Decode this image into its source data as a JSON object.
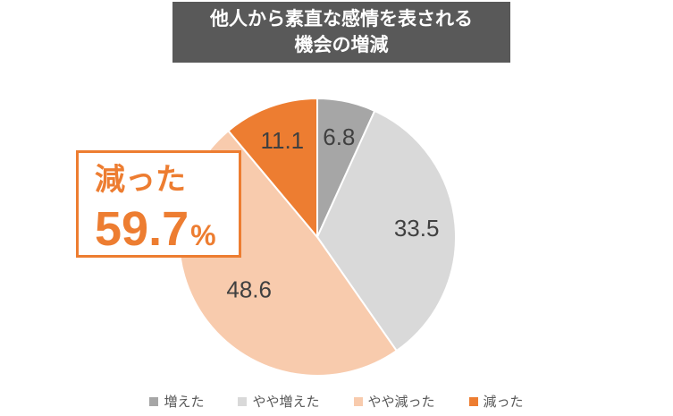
{
  "title": {
    "line1": "他人から素直な感情を表される",
    "line2": "機会の増減"
  },
  "callout": {
    "label": "減った",
    "value": "59.7",
    "unit": "%"
  },
  "chart_data": {
    "type": "pie",
    "title": "他人から素直な感情を表される 機会の増減",
    "start_angle_deg": 0,
    "direction": "clockwise",
    "slices": [
      {
        "label": "増えた",
        "value": 6.8,
        "color": "#a6a6a6"
      },
      {
        "label": "やや増えた",
        "value": 33.5,
        "color": "#d9d9d9"
      },
      {
        "label": "やや減った",
        "value": 48.6,
        "color": "#f8cbad"
      },
      {
        "label": "減った",
        "value": 11.1,
        "color": "#ed7d31"
      }
    ],
    "legend_position": "bottom"
  }
}
